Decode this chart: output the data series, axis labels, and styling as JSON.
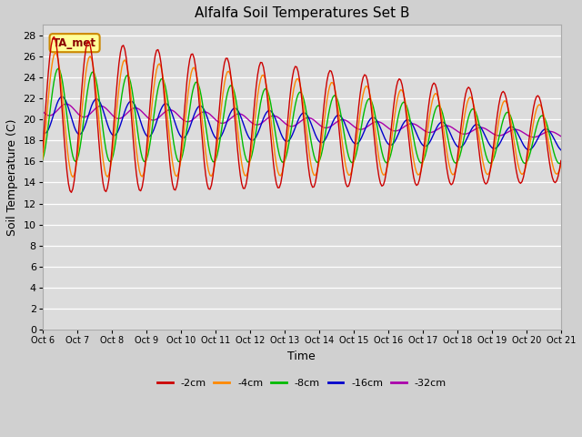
{
  "title": "Alfalfa Soil Temperatures Set B",
  "xlabel": "Time",
  "ylabel": "Soil Temperature (C)",
  "ylim": [
    0,
    29
  ],
  "yticks": [
    0,
    2,
    4,
    6,
    8,
    10,
    12,
    14,
    16,
    18,
    20,
    22,
    24,
    26,
    28
  ],
  "x_labels": [
    "Oct 6",
    "Oct 7",
    "Oct 8",
    "Oct 9",
    "Oct 10",
    "Oct 11",
    "Oct 12",
    "Oct 13",
    "Oct 14",
    "Oct 15",
    "Oct 16",
    "Oct 17",
    "Oct 18",
    "Oct 19",
    "Oct 20",
    "Oct 21"
  ],
  "legend_labels": [
    "-2cm",
    "-4cm",
    "-8cm",
    "-16cm",
    "-32cm"
  ],
  "line_colors": [
    "#cc0000",
    "#ff8800",
    "#00bb00",
    "#0000cc",
    "#aa00aa"
  ],
  "annotation_text": "TA_met",
  "annotation_bg": "#ffff99",
  "annotation_border": "#cc8800",
  "fig_bg": "#d0d0d0",
  "plot_bg": "#dcdcdc",
  "grid_color": "#ffffff"
}
